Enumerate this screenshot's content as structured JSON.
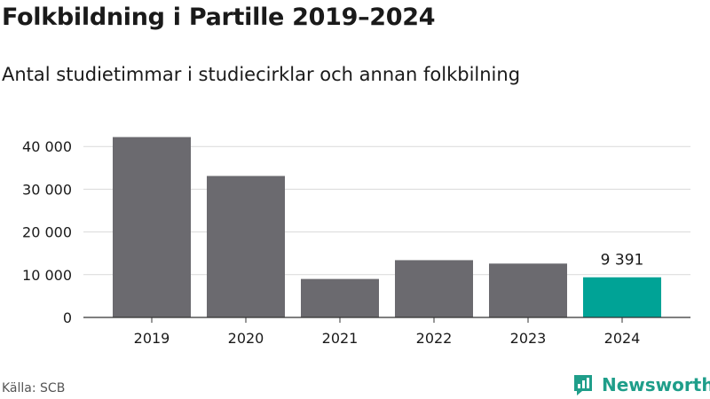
{
  "header": {
    "title": "Folkbildning i Partille 2019–2024",
    "subtitle": "Antal studietimmar i studiecirklar och annan folkbilning"
  },
  "footer": {
    "source": "Källa: SCB",
    "brand": "Newsworthy"
  },
  "icons": {
    "brand_logo": "newsworthy-logo-icon"
  },
  "colors": {
    "bar": "#6b6a6f",
    "highlight": "#00a396",
    "grid": "#d9d9d9",
    "axis": "#333333",
    "brand": "#1f9e8a"
  },
  "chart_data": {
    "type": "bar",
    "title": "Folkbildning i Partille 2019–2024",
    "subtitle": "Antal studietimmar i studiecirklar och annan folkbilning",
    "xlabel": "",
    "ylabel": "",
    "categories": [
      "2019",
      "2020",
      "2021",
      "2022",
      "2023",
      "2024"
    ],
    "values": [
      42200,
      33100,
      9000,
      13400,
      12600,
      9391
    ],
    "ylim": [
      0,
      45000
    ],
    "yticks": [
      0,
      10000,
      20000,
      30000,
      40000
    ],
    "ytick_labels": [
      "0",
      "10 000",
      "20 000",
      "30 000",
      "40 000"
    ],
    "highlight_index": 5,
    "data_labels": [
      {
        "index": 5,
        "text": "9 391"
      }
    ],
    "grid": true,
    "legend": "none"
  }
}
